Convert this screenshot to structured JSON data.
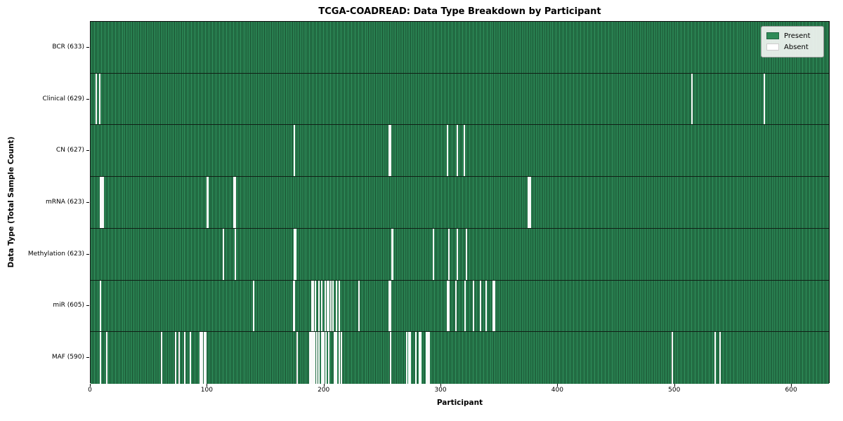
{
  "chart_data": {
    "type": "heatmap",
    "title": "TCGA-COADREAD: Data Type Breakdown by Participant",
    "xlabel": "Participant",
    "ylabel": "Data Type (Total Sample Count)",
    "legend_labels": [
      "Present",
      "Absent"
    ],
    "legend_position": "upper right",
    "x_ticks": [
      0,
      100,
      200,
      300,
      400,
      500,
      600
    ],
    "x_range": [
      0,
      633
    ],
    "total_participants": 633,
    "colors": {
      "present": "#2e8b57",
      "present_edge": "#16482b",
      "absent": "#ffffff"
    },
    "rows": [
      {
        "label": "BCR (633)",
        "data_type": "BCR",
        "sample_count": 633,
        "absent_participants": []
      },
      {
        "label": "Clinical (629)",
        "data_type": "Clinical",
        "sample_count": 629,
        "absent_participants": [
          4,
          7,
          514,
          576
        ]
      },
      {
        "label": "CN (627)",
        "data_type": "CN",
        "sample_count": 627,
        "absent_participants": [
          174,
          255,
          256,
          305,
          313,
          319
        ]
      },
      {
        "label": "mRNA (623)",
        "data_type": "mRNA",
        "sample_count": 623,
        "absent_participants": [
          8,
          9,
          10,
          99,
          100,
          122,
          123,
          374,
          375,
          376
        ]
      },
      {
        "label": "Methylation (623)",
        "data_type": "Methylation",
        "sample_count": 623,
        "absent_participants": [
          113,
          123,
          174,
          175,
          257,
          258,
          293,
          306,
          313,
          321
        ]
      },
      {
        "label": "miR (605)",
        "data_type": "miR",
        "sample_count": 605,
        "absent_participants": [
          8,
          139,
          173,
          174,
          189,
          190,
          192,
          195,
          197,
          200,
          202,
          203,
          205,
          207,
          210,
          212,
          229,
          255,
          256,
          305,
          306,
          312,
          320,
          327,
          333,
          338,
          344,
          345
        ]
      },
      {
        "label": "MAF (590)",
        "data_type": "MAF",
        "sample_count": 590,
        "absent_participants": [
          8,
          13,
          60,
          72,
          75,
          80,
          85,
          93,
          94,
          95,
          97,
          98,
          176,
          187,
          188,
          189,
          190,
          191,
          193,
          195,
          197,
          198,
          199,
          201,
          203,
          208,
          209,
          210,
          212,
          214,
          256,
          270,
          272,
          273,
          278,
          281,
          282,
          287,
          288,
          289,
          497,
          534,
          538
        ]
      }
    ]
  }
}
